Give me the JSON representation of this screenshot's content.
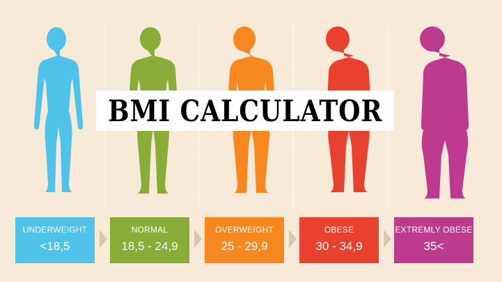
{
  "title": "BMI CALCULATOR",
  "categories": [
    {
      "label": "UNDERWEIGHT",
      "range": "<18,5",
      "color": "#4fc3ea",
      "figure": "slim-figure"
    },
    {
      "label": "NORMAL",
      "range": "18,5 - 24,9",
      "color": "#8aac38",
      "figure": "normal-figure"
    },
    {
      "label": "OVERWEIGHT",
      "range": "25 - 29,9",
      "color": "#f7871f",
      "figure": "overweight-figure"
    },
    {
      "label": "OBESE",
      "range": "30 - 34,9",
      "color": "#e8412f",
      "figure": "obese-figure"
    },
    {
      "label": "EXTREMLY OBESE",
      "range": "35<",
      "color": "#bd3b8e",
      "figure": "extremely-obese-figure"
    }
  ],
  "colors": {
    "background": "#f7ead8",
    "arrow": "#d9c8aa",
    "banner": "#ffffff"
  }
}
